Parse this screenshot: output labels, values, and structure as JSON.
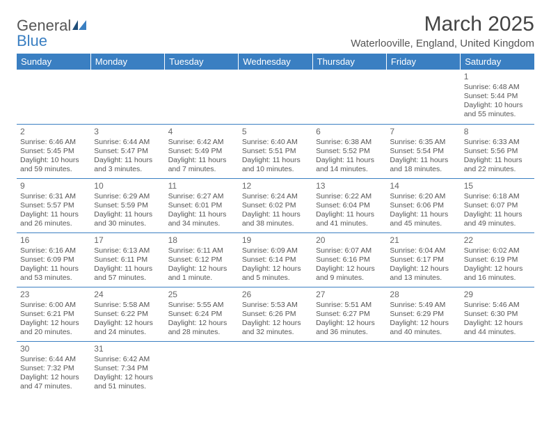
{
  "brand": {
    "part1": "General",
    "part2": "Blue"
  },
  "title": "March 2025",
  "location": "Waterlooville, England, United Kingdom",
  "colors": {
    "header_bg": "#3a7fc2",
    "header_text": "#ffffff",
    "border": "#3a7fc2",
    "body_text": "#555555",
    "title_text": "#444444",
    "background": "#ffffff"
  },
  "typography": {
    "title_fontsize_pt": 22,
    "location_fontsize_pt": 11,
    "header_fontsize_pt": 10,
    "cell_fontsize_pt": 8,
    "daynum_fontsize_pt": 9
  },
  "day_headers": [
    "Sunday",
    "Monday",
    "Tuesday",
    "Wednesday",
    "Thursday",
    "Friday",
    "Saturday"
  ],
  "weeks": [
    [
      null,
      null,
      null,
      null,
      null,
      null,
      {
        "n": "1",
        "sunrise": "6:48 AM",
        "sunset": "5:44 PM",
        "daylight": "10 hours and 55 minutes."
      }
    ],
    [
      {
        "n": "2",
        "sunrise": "6:46 AM",
        "sunset": "5:45 PM",
        "daylight": "10 hours and 59 minutes."
      },
      {
        "n": "3",
        "sunrise": "6:44 AM",
        "sunset": "5:47 PM",
        "daylight": "11 hours and 3 minutes."
      },
      {
        "n": "4",
        "sunrise": "6:42 AM",
        "sunset": "5:49 PM",
        "daylight": "11 hours and 7 minutes."
      },
      {
        "n": "5",
        "sunrise": "6:40 AM",
        "sunset": "5:51 PM",
        "daylight": "11 hours and 10 minutes."
      },
      {
        "n": "6",
        "sunrise": "6:38 AM",
        "sunset": "5:52 PM",
        "daylight": "11 hours and 14 minutes."
      },
      {
        "n": "7",
        "sunrise": "6:35 AM",
        "sunset": "5:54 PM",
        "daylight": "11 hours and 18 minutes."
      },
      {
        "n": "8",
        "sunrise": "6:33 AM",
        "sunset": "5:56 PM",
        "daylight": "11 hours and 22 minutes."
      }
    ],
    [
      {
        "n": "9",
        "sunrise": "6:31 AM",
        "sunset": "5:57 PM",
        "daylight": "11 hours and 26 minutes."
      },
      {
        "n": "10",
        "sunrise": "6:29 AM",
        "sunset": "5:59 PM",
        "daylight": "11 hours and 30 minutes."
      },
      {
        "n": "11",
        "sunrise": "6:27 AM",
        "sunset": "6:01 PM",
        "daylight": "11 hours and 34 minutes."
      },
      {
        "n": "12",
        "sunrise": "6:24 AM",
        "sunset": "6:02 PM",
        "daylight": "11 hours and 38 minutes."
      },
      {
        "n": "13",
        "sunrise": "6:22 AM",
        "sunset": "6:04 PM",
        "daylight": "11 hours and 41 minutes."
      },
      {
        "n": "14",
        "sunrise": "6:20 AM",
        "sunset": "6:06 PM",
        "daylight": "11 hours and 45 minutes."
      },
      {
        "n": "15",
        "sunrise": "6:18 AM",
        "sunset": "6:07 PM",
        "daylight": "11 hours and 49 minutes."
      }
    ],
    [
      {
        "n": "16",
        "sunrise": "6:16 AM",
        "sunset": "6:09 PM",
        "daylight": "11 hours and 53 minutes."
      },
      {
        "n": "17",
        "sunrise": "6:13 AM",
        "sunset": "6:11 PM",
        "daylight": "11 hours and 57 minutes."
      },
      {
        "n": "18",
        "sunrise": "6:11 AM",
        "sunset": "6:12 PM",
        "daylight": "12 hours and 1 minute."
      },
      {
        "n": "19",
        "sunrise": "6:09 AM",
        "sunset": "6:14 PM",
        "daylight": "12 hours and 5 minutes."
      },
      {
        "n": "20",
        "sunrise": "6:07 AM",
        "sunset": "6:16 PM",
        "daylight": "12 hours and 9 minutes."
      },
      {
        "n": "21",
        "sunrise": "6:04 AM",
        "sunset": "6:17 PM",
        "daylight": "12 hours and 13 minutes."
      },
      {
        "n": "22",
        "sunrise": "6:02 AM",
        "sunset": "6:19 PM",
        "daylight": "12 hours and 16 minutes."
      }
    ],
    [
      {
        "n": "23",
        "sunrise": "6:00 AM",
        "sunset": "6:21 PM",
        "daylight": "12 hours and 20 minutes."
      },
      {
        "n": "24",
        "sunrise": "5:58 AM",
        "sunset": "6:22 PM",
        "daylight": "12 hours and 24 minutes."
      },
      {
        "n": "25",
        "sunrise": "5:55 AM",
        "sunset": "6:24 PM",
        "daylight": "12 hours and 28 minutes."
      },
      {
        "n": "26",
        "sunrise": "5:53 AM",
        "sunset": "6:26 PM",
        "daylight": "12 hours and 32 minutes."
      },
      {
        "n": "27",
        "sunrise": "5:51 AM",
        "sunset": "6:27 PM",
        "daylight": "12 hours and 36 minutes."
      },
      {
        "n": "28",
        "sunrise": "5:49 AM",
        "sunset": "6:29 PM",
        "daylight": "12 hours and 40 minutes."
      },
      {
        "n": "29",
        "sunrise": "5:46 AM",
        "sunset": "6:30 PM",
        "daylight": "12 hours and 44 minutes."
      }
    ],
    [
      {
        "n": "30",
        "sunrise": "6:44 AM",
        "sunset": "7:32 PM",
        "daylight": "12 hours and 47 minutes."
      },
      {
        "n": "31",
        "sunrise": "6:42 AM",
        "sunset": "7:34 PM",
        "daylight": "12 hours and 51 minutes."
      },
      null,
      null,
      null,
      null,
      null
    ]
  ],
  "labels": {
    "sunrise": "Sunrise:",
    "sunset": "Sunset:",
    "daylight": "Daylight:"
  }
}
